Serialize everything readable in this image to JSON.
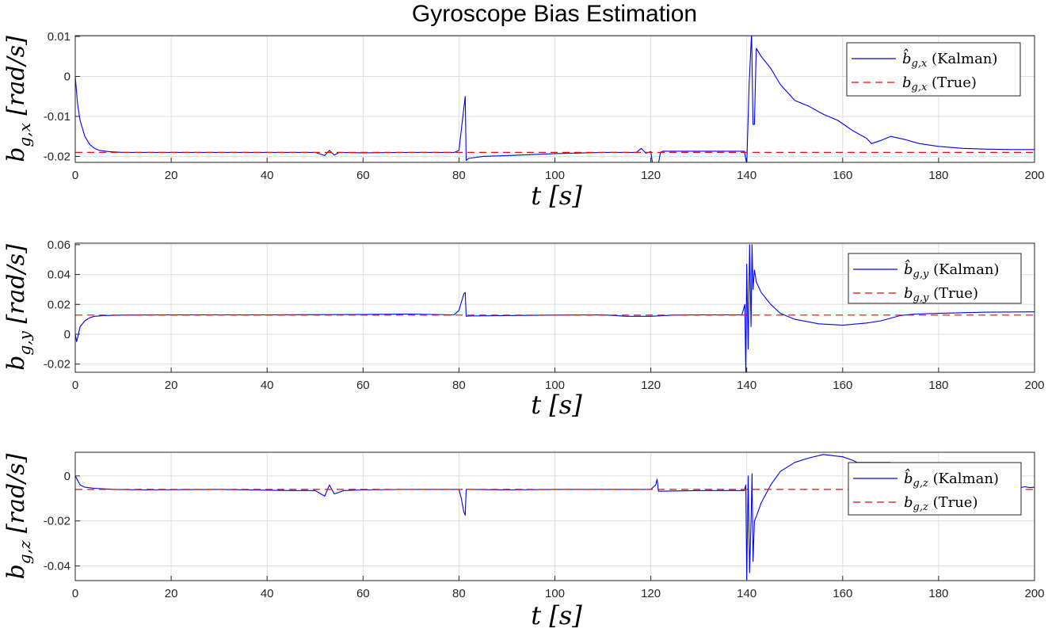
{
  "figure": {
    "title": "Gyroscope Bias Estimation"
  },
  "chart_data": [
    {
      "type": "line",
      "xlabel": "t [s]",
      "ylabel": "b_{g,x} [rad/s]",
      "xlim": [
        0,
        200
      ],
      "ylim": [
        -0.0215,
        0.0102
      ],
      "xticks": [
        "0",
        "20",
        "40",
        "60",
        "80",
        "100",
        "120",
        "140",
        "160",
        "180",
        "200"
      ],
      "yticks": [
        0.01,
        0,
        -0.01,
        -0.02
      ],
      "ytick_labels": [
        "0.01",
        "0",
        "-0.01",
        "-0.02"
      ],
      "grid": true,
      "legend_position": "top-right",
      "series": [
        {
          "name": "b̂_{g,x} (Kalman)",
          "color": "#0000ff",
          "style": "solid",
          "x": [
            0,
            0.5,
            1,
            2,
            3,
            4,
            5,
            7,
            10,
            15,
            20,
            30,
            40,
            50,
            52,
            53,
            54,
            55,
            60,
            70,
            79,
            80,
            81,
            81.3,
            81.5,
            82,
            85,
            90,
            100,
            110,
            117,
            118,
            119,
            120,
            120.5,
            121,
            121.5,
            122,
            122.5,
            130,
            139.5,
            140,
            140.5,
            141,
            141.3,
            141.6,
            141.9,
            142,
            143,
            145,
            147,
            150,
            153,
            156,
            159,
            162,
            165,
            166,
            168,
            170,
            173,
            176,
            180,
            185,
            190,
            195,
            200
          ],
          "y": [
            0,
            -0.007,
            -0.011,
            -0.015,
            -0.017,
            -0.018,
            -0.0185,
            -0.0188,
            -0.019,
            -0.019,
            -0.019,
            -0.019,
            -0.019,
            -0.019,
            -0.0198,
            -0.0185,
            -0.0197,
            -0.019,
            -0.0191,
            -0.019,
            -0.019,
            -0.0185,
            -0.008,
            -0.005,
            -0.021,
            -0.0205,
            -0.02,
            -0.0198,
            -0.0193,
            -0.019,
            -0.019,
            -0.018,
            -0.0192,
            -0.0188,
            -0.023,
            -0.023,
            -0.0225,
            -0.019,
            -0.0187,
            -0.0187,
            -0.0187,
            -0.022,
            -0.002,
            0.011,
            -0.012,
            -0.012,
            0.003,
            0.007,
            0.005,
            0.002,
            -0.002,
            -0.006,
            -0.0075,
            -0.0095,
            -0.011,
            -0.0135,
            -0.0155,
            -0.0168,
            -0.016,
            -0.015,
            -0.0158,
            -0.0168,
            -0.0175,
            -0.018,
            -0.0182,
            -0.0183,
            -0.0183
          ]
        },
        {
          "name": "b_{g,x} (True)",
          "color": "#ff0000",
          "style": "dashed",
          "x": [
            0,
            200
          ],
          "y": [
            -0.019,
            -0.019
          ]
        }
      ]
    },
    {
      "type": "line",
      "xlabel": "t [s]",
      "ylabel": "b_{g,y} [rad/s]",
      "xlim": [
        0,
        200
      ],
      "ylim": [
        -0.0255,
        0.061
      ],
      "xticks": [
        "0",
        "20",
        "40",
        "60",
        "80",
        "100",
        "120",
        "140",
        "160",
        "180",
        "200"
      ],
      "yticks": [
        0.06,
        0.04,
        0.02,
        0,
        -0.02
      ],
      "ytick_labels": [
        "0.06",
        "0.04",
        "0.02",
        "0",
        "-0.02"
      ],
      "grid": true,
      "legend_position": "top-right",
      "series": [
        {
          "name": "b̂_{g,y} (Kalman)",
          "color": "#0000ff",
          "style": "solid",
          "x": [
            0,
            0.3,
            1,
            2,
            3,
            4,
            6,
            10,
            20,
            40,
            60,
            70,
            79,
            80,
            81,
            81.3,
            81.5,
            82,
            90,
            100,
            110,
            115,
            120,
            125,
            130,
            139,
            139.6,
            139.8,
            140,
            140.3,
            140.6,
            140.9,
            141.1,
            141.3,
            141.6,
            142,
            143,
            145,
            147,
            150,
            155,
            160,
            165,
            168,
            172,
            175,
            180,
            190,
            200
          ],
          "y": [
            0,
            -0.005,
            0.005,
            0.009,
            0.011,
            0.012,
            0.0125,
            0.0128,
            0.013,
            0.013,
            0.0132,
            0.0135,
            0.013,
            0.016,
            0.027,
            0.028,
            0.012,
            0.0122,
            0.0125,
            0.0128,
            0.013,
            0.012,
            0.012,
            0.0128,
            0.013,
            0.013,
            0.02,
            -0.026,
            0.047,
            -0.01,
            0.06,
            0.005,
            0.06,
            0.03,
            0.043,
            0.035,
            0.028,
            0.02,
            0.014,
            0.01,
            0.007,
            0.006,
            0.0075,
            0.009,
            0.0125,
            0.0135,
            0.014,
            0.0148,
            0.015
          ]
        },
        {
          "name": "b_{g,y} (True)",
          "color": "#ff0000",
          "style": "dashed",
          "x": [
            0,
            200
          ],
          "y": [
            0.0128,
            0.0128
          ]
        }
      ]
    },
    {
      "type": "line",
      "xlabel": "t [s]",
      "ylabel": "b_{g,z} [rad/s]",
      "xlim": [
        0,
        200
      ],
      "ylim": [
        -0.0465,
        0.0105
      ],
      "xticks": [
        "0",
        "20",
        "40",
        "60",
        "80",
        "100",
        "120",
        "140",
        "160",
        "180",
        "200"
      ],
      "yticks": [
        0,
        -0.02,
        -0.04
      ],
      "ytick_labels": [
        "0",
        "-0.02",
        "-0.04"
      ],
      "grid": true,
      "legend_position": "top-right",
      "series": [
        {
          "name": "b̂_{g,z} (Kalman)",
          "color": "#0000ff",
          "style": "solid",
          "x": [
            0,
            1,
            2,
            4,
            8,
            15,
            30,
            45,
            50,
            52,
            53,
            54,
            56,
            60,
            70,
            80,
            80.5,
            81,
            81.3,
            81.5,
            82,
            90,
            100,
            110,
            120,
            121,
            121.3,
            121.6,
            122,
            130,
            139.5,
            139.8,
            140,
            140.3,
            140.6,
            140.9,
            141.1,
            141.3,
            141.6,
            142,
            143,
            145,
            147,
            150,
            153,
            156,
            158,
            160,
            162,
            163,
            166,
            170
          ],
          "y": [
            0,
            -0.004,
            -0.005,
            -0.0055,
            -0.006,
            -0.0062,
            -0.006,
            -0.0065,
            -0.0065,
            -0.009,
            -0.004,
            -0.008,
            -0.0065,
            -0.0062,
            -0.006,
            -0.006,
            -0.01,
            -0.016,
            -0.0175,
            -0.006,
            -0.006,
            -0.0062,
            -0.006,
            -0.006,
            -0.006,
            -0.004,
            -0.0015,
            -0.0068,
            -0.0068,
            -0.0065,
            -0.0065,
            -0.004,
            -0.046,
            0.0,
            -0.043,
            -0.02,
            0.001,
            -0.038,
            -0.02,
            -0.018,
            -0.012,
            -0.004,
            0.002,
            0.006,
            0.008,
            0.0095,
            0.009,
            0.0085,
            0.007,
            0.006,
            0.006,
            0.006
          ]
        },
        {
          "name": "b_{g,z} (True)",
          "color": "#ff0000",
          "style": "dashed",
          "x": [
            0,
            200
          ],
          "y": [
            -0.006,
            -0.006
          ]
        },
        {
          "name": "",
          "color": "#0000ff",
          "style": "solid",
          "x": [
            196,
            197,
            198,
            199,
            200
          ],
          "y": [
            -0.005,
            -0.0052,
            -0.0048,
            -0.0052,
            -0.005
          ]
        }
      ]
    }
  ]
}
